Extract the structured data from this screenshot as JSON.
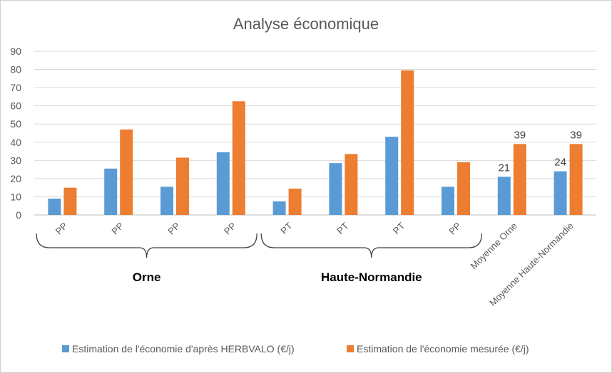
{
  "chart_data": {
    "type": "bar",
    "title": "Analyse économique",
    "xlabel": "",
    "ylabel": "",
    "ylim": [
      0,
      90
    ],
    "yticks": [
      0,
      10,
      20,
      30,
      40,
      50,
      60,
      70,
      80,
      90
    ],
    "grid": true,
    "legend_position": "bottom",
    "categories": [
      "PP",
      "PP",
      "PP",
      "PP",
      "PT",
      "PT",
      "PT",
      "PP",
      "Moyenne Orne",
      "Moyenne Haute-Normandie"
    ],
    "groups": [
      {
        "label": "Orne",
        "from": 0,
        "to": 3
      },
      {
        "label": "Haute-Normandie",
        "from": 4,
        "to": 7
      }
    ],
    "series": [
      {
        "name": "Estimation de l'économie d'après HERBVALO (€/j)",
        "color": "#5B9BD5",
        "values": [
          9,
          25.5,
          15.5,
          34.5,
          7.5,
          28.5,
          43,
          15.5,
          21,
          24
        ],
        "labels": [
          "",
          "",
          "",
          "",
          "",
          "",
          "",
          "",
          "21",
          "24"
        ]
      },
      {
        "name": "Estimation de l'économie mesurée (€/j)",
        "color": "#ED7D31",
        "values": [
          15,
          47,
          31.5,
          62.5,
          14.5,
          33.5,
          79.5,
          29,
          39,
          39
        ],
        "labels": [
          "",
          "",
          "",
          "",
          "",
          "",
          "",
          "",
          "39",
          "39"
        ]
      }
    ]
  }
}
